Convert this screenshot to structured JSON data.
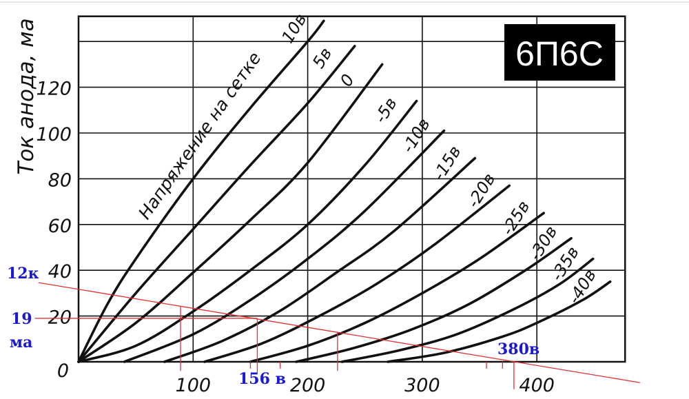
{
  "chart_data": {
    "type": "line",
    "title": "6П6С",
    "ylabel": "Ток анода, ма",
    "xlabel": "",
    "family_label": "Напряжение на сетке",
    "xlim": [
      0,
      477
    ],
    "ylim": [
      0,
      151
    ],
    "grid": true,
    "x_ticks": [
      100,
      200,
      300,
      400
    ],
    "x_tick_labels": [
      "100",
      "200",
      "300",
      "400"
    ],
    "y_ticks": [
      0,
      20,
      40,
      60,
      80,
      100,
      120,
      140
    ],
    "y_tick_labels": [
      "0",
      "20",
      "40",
      "60",
      "80",
      "100",
      "120",
      ""
    ],
    "series": [
      {
        "name": "10в",
        "points": [
          [
            0,
            0
          ],
          [
            25,
            25
          ],
          [
            50,
            45
          ],
          [
            100,
            80
          ],
          [
            150,
            111
          ],
          [
            200,
            140
          ],
          [
            214,
            149
          ]
        ]
      },
      {
        "name": "5в",
        "points": [
          [
            0,
            0
          ],
          [
            50,
            30
          ],
          [
            100,
            58
          ],
          [
            150,
            86
          ],
          [
            200,
            113
          ],
          [
            241,
            138
          ]
        ]
      },
      {
        "name": "0",
        "points": [
          [
            0,
            0
          ],
          [
            50,
            17
          ],
          [
            100,
            39
          ],
          [
            150,
            62
          ],
          [
            200,
            87
          ],
          [
            265,
            130
          ]
        ]
      },
      {
        "name": "-5в",
        "points": [
          [
            0,
            0
          ],
          [
            50,
            7
          ],
          [
            100,
            22
          ],
          [
            150,
            40
          ],
          [
            200,
            60
          ],
          [
            250,
            86
          ],
          [
            295,
            114
          ]
        ]
      },
      {
        "name": "-10в",
        "points": [
          [
            40,
            0
          ],
          [
            100,
            12
          ],
          [
            150,
            27
          ],
          [
            200,
            45
          ],
          [
            250,
            66
          ],
          [
            319,
            101
          ]
        ]
      },
      {
        "name": "-15в",
        "points": [
          [
            75,
            0
          ],
          [
            125,
            9
          ],
          [
            175,
            22
          ],
          [
            225,
            39
          ],
          [
            275,
            57
          ],
          [
            346,
            89
          ]
        ]
      },
      {
        "name": "-20в",
        "points": [
          [
            110,
            0
          ],
          [
            160,
            8
          ],
          [
            210,
            20
          ],
          [
            260,
            34
          ],
          [
            310,
            51
          ],
          [
            376,
            77
          ]
        ]
      },
      {
        "name": "-25в",
        "points": [
          [
            150,
            0
          ],
          [
            200,
            7
          ],
          [
            250,
            17
          ],
          [
            300,
            30
          ],
          [
            350,
            45
          ],
          [
            406,
            65
          ]
        ]
      },
      {
        "name": "-30в",
        "points": [
          [
            190,
            0
          ],
          [
            240,
            6
          ],
          [
            290,
            14
          ],
          [
            340,
            25
          ],
          [
            390,
            40
          ],
          [
            430,
            54
          ]
        ]
      },
      {
        "name": "-35в",
        "points": [
          [
            230,
            0
          ],
          [
            280,
            5
          ],
          [
            330,
            12
          ],
          [
            380,
            23
          ],
          [
            420,
            34
          ],
          [
            449,
            45
          ]
        ]
      },
      {
        "name": "-40в",
        "points": [
          [
            270,
            0
          ],
          [
            320,
            4
          ],
          [
            370,
            11
          ],
          [
            400,
            17
          ],
          [
            440,
            27
          ],
          [
            464,
            35
          ]
        ]
      }
    ],
    "annotations": {
      "color": "#e03030",
      "label_color": "#1a1ad0",
      "load_line": {
        "from": [
          -35,
          34.6
        ],
        "to": [
          490,
          -9.1
        ]
      },
      "operating_current": {
        "y": 19,
        "x_from": -38,
        "x_to": 156
      },
      "verticals": [
        {
          "x": 89,
          "y_from": 24.3,
          "y_to": -4
        },
        {
          "x": 156,
          "y_from": 19,
          "y_to": -5
        },
        {
          "x": 226,
          "y_from": 12.9,
          "y_to": -4
        },
        {
          "x": 380,
          "y_from": 0,
          "y_to": -12
        }
      ],
      "ticks": [
        150,
        176,
        356,
        370
      ],
      "labels": {
        "load": "12к",
        "current_value": "19",
        "current_unit": "ма",
        "voltage": "156 в",
        "supply": "380в"
      }
    }
  }
}
